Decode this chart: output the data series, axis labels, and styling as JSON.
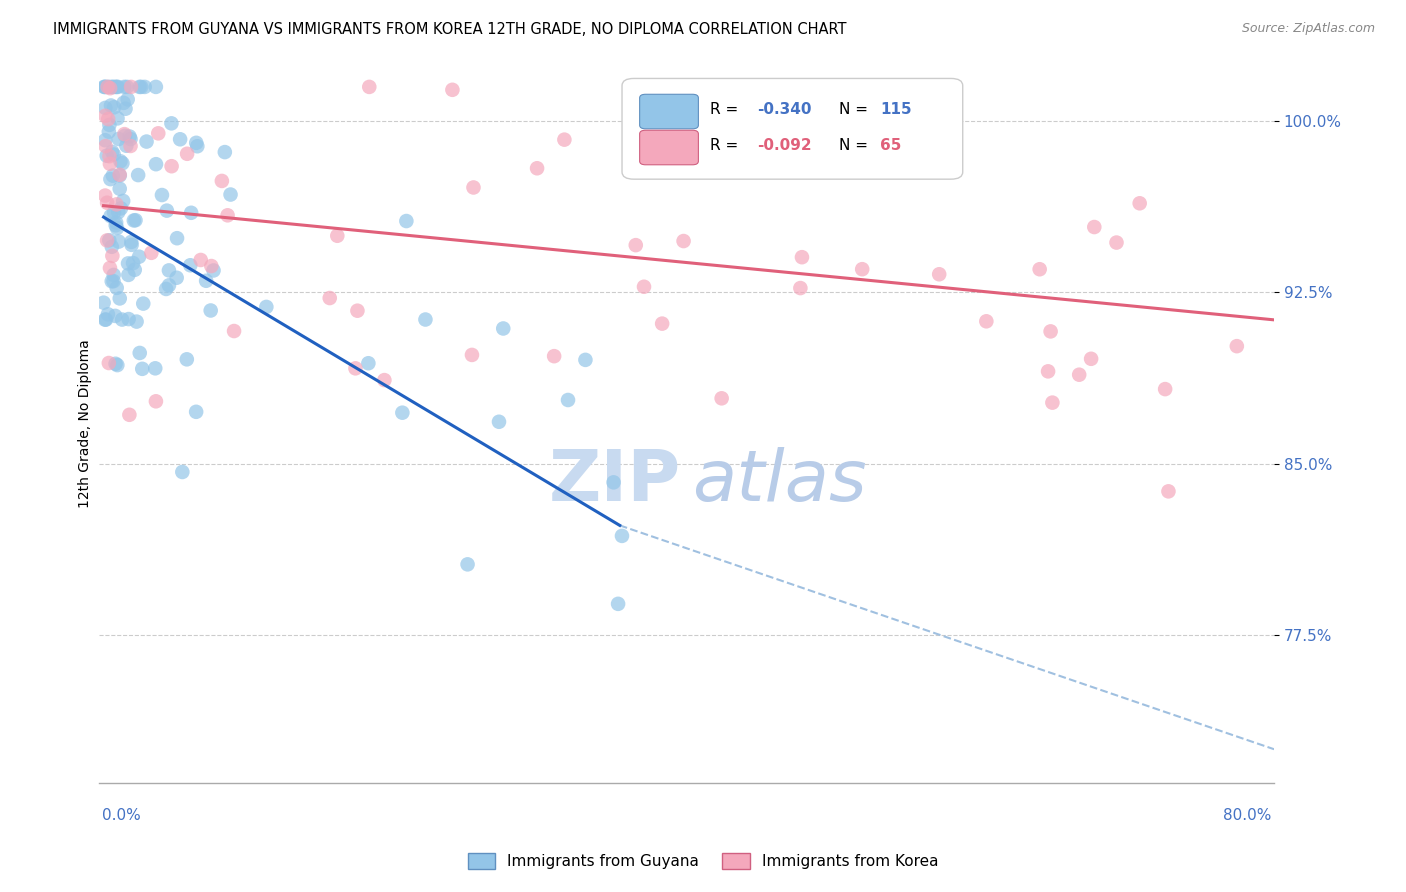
{
  "title": "IMMIGRANTS FROM GUYANA VS IMMIGRANTS FROM KOREA 12TH GRADE, NO DIPLOMA CORRELATION CHART",
  "source": "Source: ZipAtlas.com",
  "ylabel": "12th Grade, No Diploma",
  "ytick_vals": [
    77.5,
    85.0,
    92.5,
    100.0
  ],
  "ytick_labels": [
    "77.5%",
    "85.0%",
    "92.5%",
    "100.0%"
  ],
  "ymin": 71.0,
  "ymax": 102.5,
  "xmin": -0.003,
  "xmax": 0.805,
  "guyana_color": "#93c5e8",
  "korea_color": "#f4a8bc",
  "guyana_trend_color": "#2060c0",
  "korea_trend_color": "#e0607a",
  "dashed_line_color": "#a0c0e0",
  "background_color": "#ffffff",
  "grid_color": "#cccccc",
  "tick_color": "#4472c4",
  "watermark_zip_color": "#c8daf0",
  "watermark_atlas_color": "#b8cce8",
  "legend_r1": "R = -0.340",
  "legend_n1": "N = 115",
  "legend_r2": "R = -0.092",
  "legend_n2": "N = 65",
  "guyana_trend_x": [
    0.0,
    0.355
  ],
  "guyana_trend_y": [
    95.8,
    82.3
  ],
  "dashed_trend_x": [
    0.355,
    0.805
  ],
  "dashed_trend_y": [
    82.3,
    72.5
  ],
  "korea_trend_x": [
    0.0,
    0.805
  ],
  "korea_trend_y": [
    96.3,
    91.3
  ]
}
